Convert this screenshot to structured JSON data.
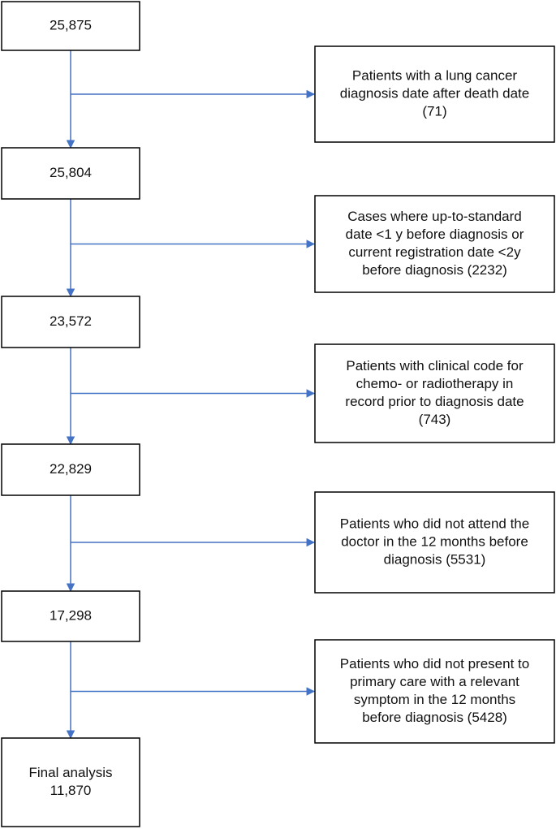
{
  "nodes": [
    {
      "lines": [
        "25,875"
      ]
    },
    {
      "lines": [
        "25,804"
      ]
    },
    {
      "lines": [
        "23,572"
      ]
    },
    {
      "lines": [
        "22,829"
      ]
    },
    {
      "lines": [
        "17,298"
      ]
    },
    {
      "lines": [
        "Final analysis",
        "11,870"
      ]
    }
  ],
  "exclusions": [
    {
      "lines": [
        "Patients with a lung cancer",
        "diagnosis date after death date",
        "(71)"
      ]
    },
    {
      "lines": [
        "Cases where up-to-standard",
        "date <1 y before diagnosis or",
        "current registration date <2y",
        "before diagnosis (2232)"
      ]
    },
    {
      "lines": [
        "Patients with clinical code for",
        "chemo- or radiotherapy in",
        "record prior to diagnosis date",
        "(743)"
      ]
    },
    {
      "lines": [
        "Patients who did not attend the",
        "doctor in the 12 months before",
        "diagnosis (5531)"
      ]
    },
    {
      "lines": [
        "Patients who did not present to",
        "primary care with a relevant",
        "symptom in the 12 months",
        "before diagnosis (5428)"
      ]
    }
  ]
}
